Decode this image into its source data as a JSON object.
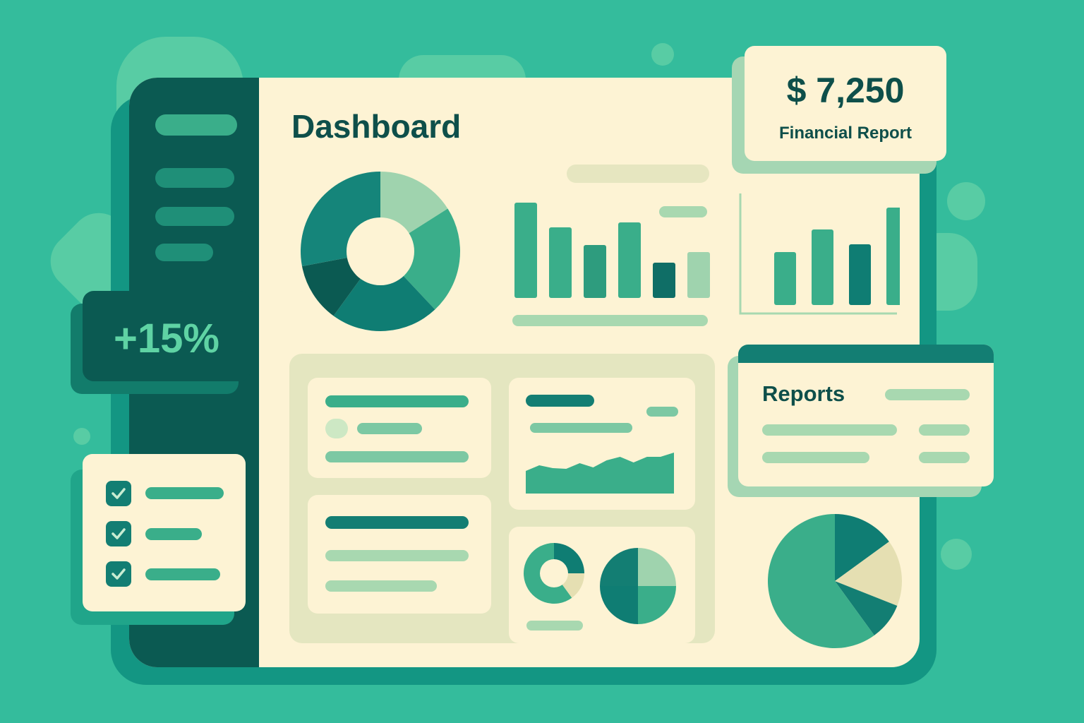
{
  "colors": {
    "background": "#34bc9c",
    "sidebar": "#0b5a52",
    "panel": "#fdf3d4",
    "accent_dark": "#0f7d73",
    "accent_mid": "#3aae8a",
    "accent_light": "#9fd3ae"
  },
  "main": {
    "title": "Dashboard"
  },
  "financial_card": {
    "amount": "$ 7,250",
    "label": "Financial Report"
  },
  "growth_card": {
    "value": "+15%"
  },
  "reports_card": {
    "title": "Reports"
  },
  "checklist": {
    "items_checked": [
      true,
      true,
      true
    ],
    "icon": "checkmark-icon"
  },
  "chart_data": [
    {
      "type": "pie",
      "note_type": "donut",
      "values": [
        16,
        22,
        22,
        12,
        28
      ],
      "colors": [
        "#9fd3ae",
        "#3aae8a",
        "#0f7d73",
        "#0b5a52",
        "#15857a"
      ]
    },
    {
      "type": "bar",
      "values": [
        135,
        100,
        75,
        107,
        50,
        65
      ],
      "colors": [
        "#3aae8a",
        "#3aae8a",
        "#2e9c7e",
        "#3aae8a",
        "#0f6e66",
        "#9fd3ae"
      ]
    },
    {
      "type": "bar",
      "values": [
        75,
        107,
        86,
        138
      ],
      "colors": [
        "#3aae8a",
        "#3aae8a",
        "#0f7d73",
        "#3aae8a"
      ]
    },
    {
      "type": "area",
      "values": [
        32,
        40,
        36,
        35,
        43,
        37,
        47,
        52,
        44,
        52,
        52,
        58
      ]
    },
    {
      "type": "pie",
      "note_type": "donut",
      "values": [
        25,
        15,
        60
      ],
      "colors": [
        "#0f7d73",
        "#e5dfb2",
        "#3aae8a"
      ]
    },
    {
      "type": "pie",
      "values": [
        25,
        25,
        25,
        25
      ],
      "colors": [
        "#9fd3ae",
        "#3aae8a",
        "#0f7d73",
        "#137e73"
      ]
    },
    {
      "type": "pie",
      "values": [
        15,
        16,
        9,
        60
      ],
      "colors": [
        "#0f7d73",
        "#e5dfb2",
        "#137e73",
        "#3aae8a"
      ]
    }
  ]
}
